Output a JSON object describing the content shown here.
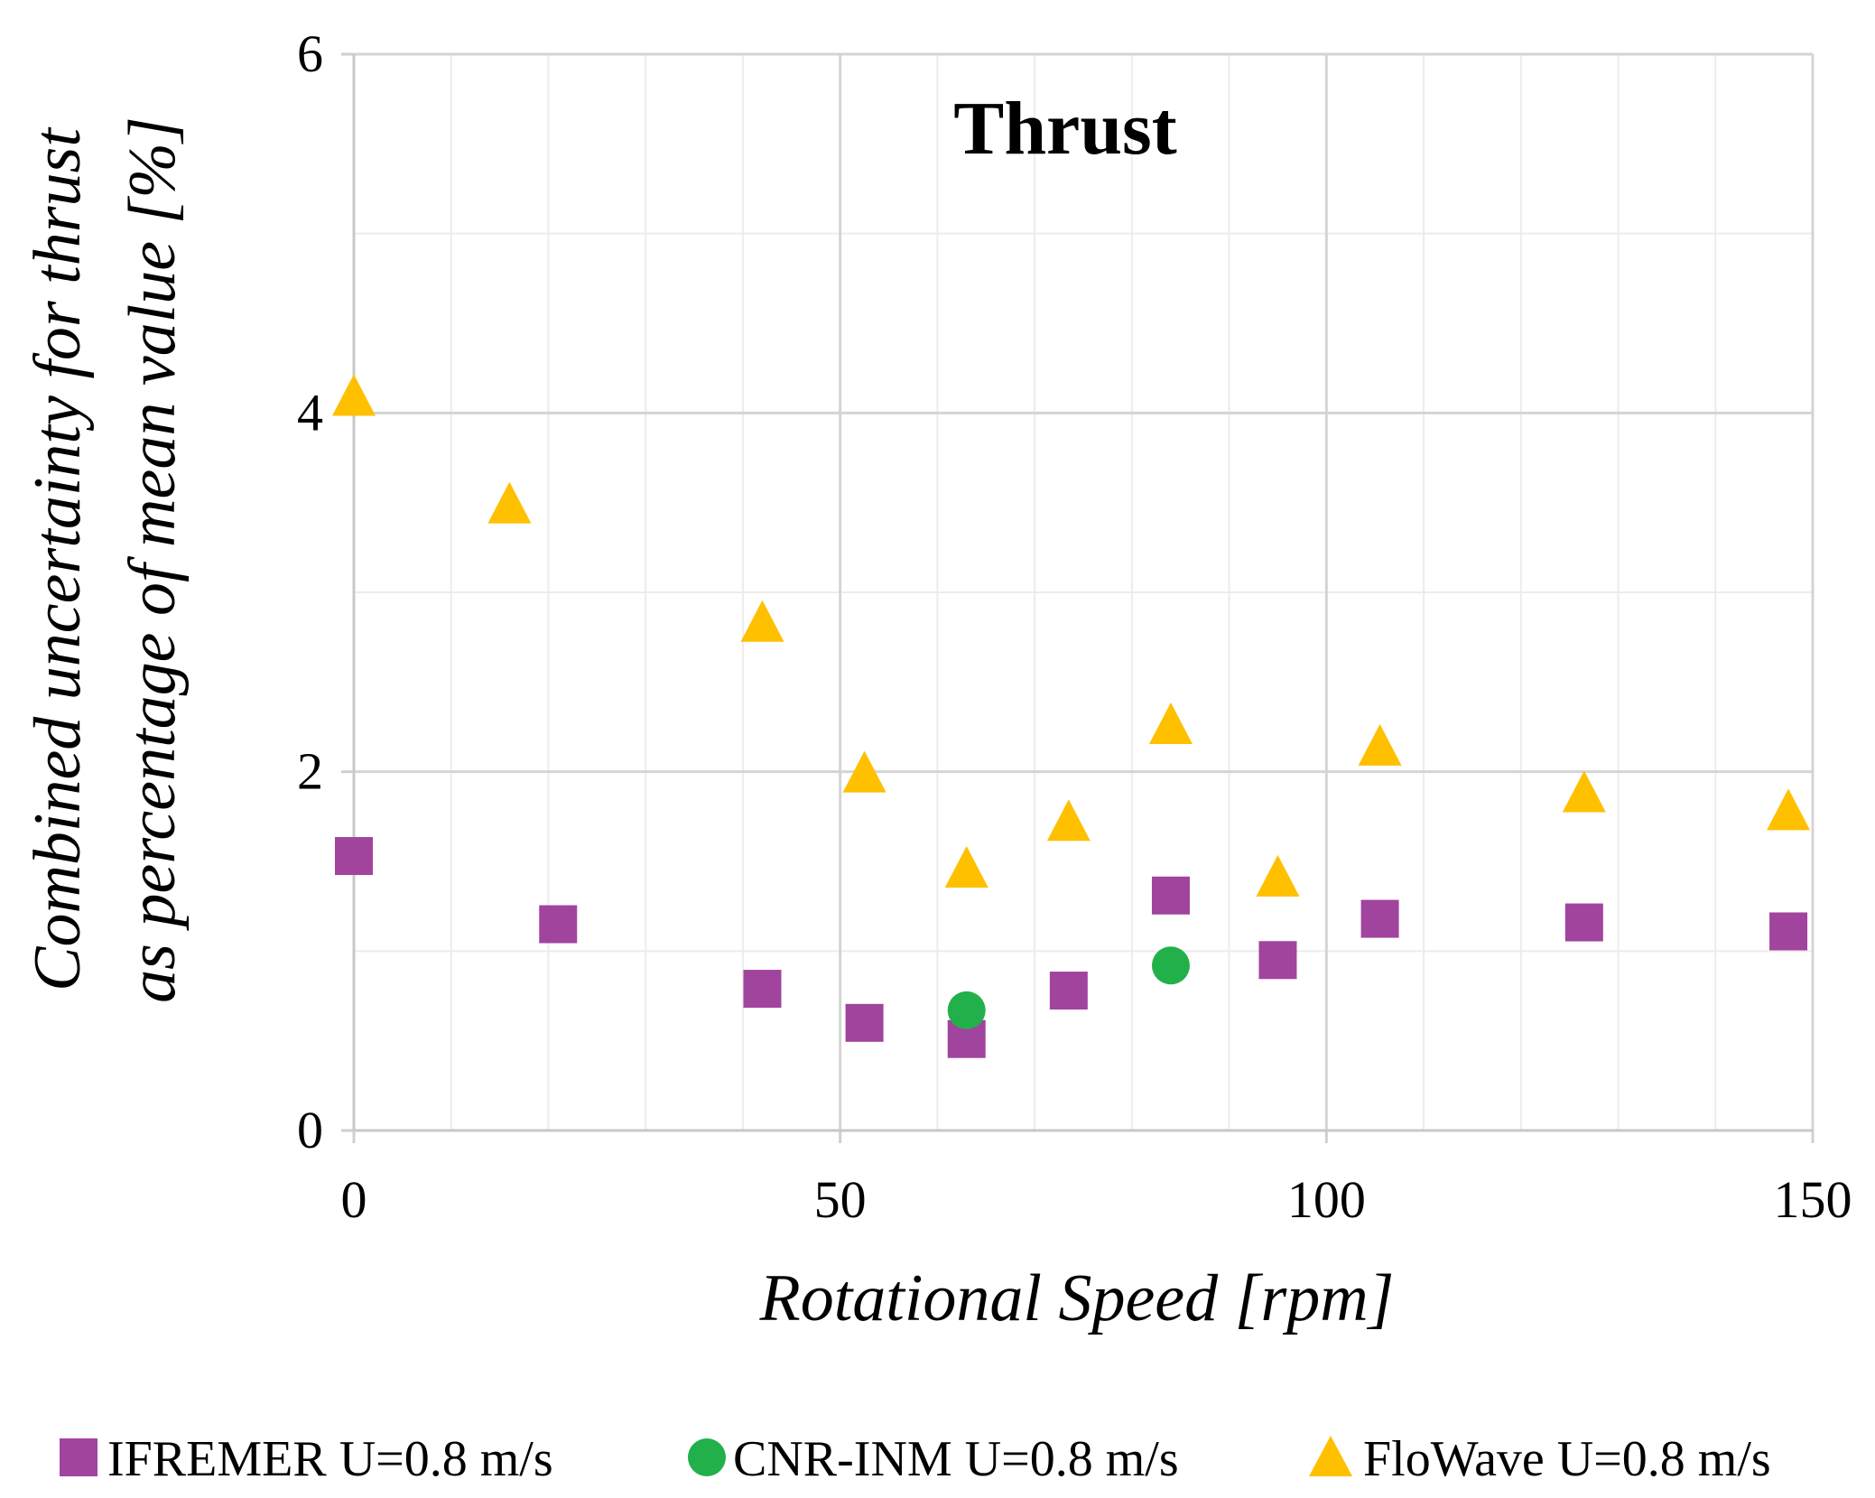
{
  "chart_data": {
    "type": "scatter",
    "title": "Thrust",
    "xlabel": "Rotational Speed [rpm]",
    "ylabel": [
      "Combined uncertainty for thrust",
      "as percentage of mean value [%]"
    ],
    "xlim": [
      0,
      150
    ],
    "ylim": [
      0,
      6
    ],
    "xticks": [
      0,
      50,
      100,
      150
    ],
    "yticks": [
      0,
      2,
      4,
      6
    ],
    "x_minor_step": 10,
    "y_minor_step": 1,
    "grid": true,
    "legend_position": "bottom",
    "series": [
      {
        "name": "IFREMER U=0.8 m/s",
        "marker": "square",
        "color": "#a1449d",
        "points": [
          [
            0,
            1.53
          ],
          [
            21,
            1.15
          ],
          [
            42,
            0.79
          ],
          [
            52.5,
            0.6
          ],
          [
            63,
            0.51
          ],
          [
            73.5,
            0.78
          ],
          [
            84,
            1.31
          ],
          [
            95,
            0.95
          ],
          [
            105.5,
            1.18
          ],
          [
            126.5,
            1.16
          ],
          [
            147.5,
            1.11
          ]
        ]
      },
      {
        "name": "CNR-INM U=0.8 m/s",
        "marker": "circle",
        "color": "#22b04b",
        "points": [
          [
            63,
            0.67
          ],
          [
            84,
            0.92
          ]
        ]
      },
      {
        "name": "FloWave U=0.8 m/s",
        "marker": "triangle",
        "color": "#ffc000",
        "points": [
          [
            0,
            4.1
          ],
          [
            16,
            3.5
          ],
          [
            42,
            2.84
          ],
          [
            52.5,
            2.0
          ],
          [
            63,
            1.47
          ],
          [
            73.5,
            1.73
          ],
          [
            84,
            2.27
          ],
          [
            95,
            1.42
          ],
          [
            105.5,
            2.15
          ],
          [
            126.5,
            1.89
          ],
          [
            147.5,
            1.79
          ]
        ]
      }
    ]
  }
}
